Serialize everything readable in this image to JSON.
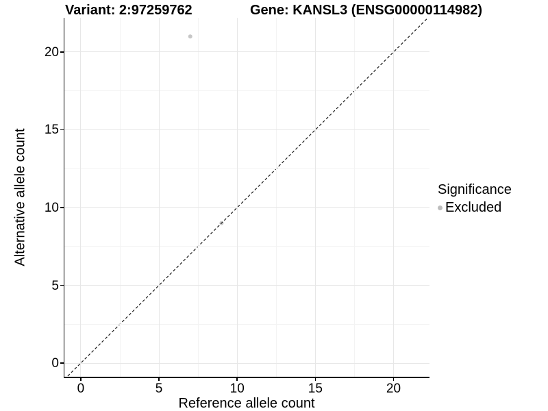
{
  "figure": {
    "variant_title": "Variant: 2:97259762",
    "gene_title": "Gene: KANSL3 (ENSG00000114982)",
    "legend": {
      "title": "Significance",
      "items": [
        {
          "label": "Excluded",
          "color": "#bdbdbd"
        }
      ]
    }
  },
  "chart_data": {
    "type": "scatter",
    "title_left": "Variant: 2:97259762",
    "title_right": "Gene: KANSL3 (ENSG00000114982)",
    "xlabel": "Reference allele count",
    "ylabel": "Alternative allele count",
    "xlim": [
      -1.05,
      22.3
    ],
    "ylim": [
      -0.88,
      22.2
    ],
    "x_ticks": [
      0,
      5,
      10,
      15,
      20
    ],
    "y_ticks": [
      0,
      5,
      10,
      15,
      20
    ],
    "x_minor_gridlines": [
      2.5,
      7.5,
      12.5,
      17.5
    ],
    "y_minor_gridlines": [
      2.5,
      7.5,
      12.5,
      17.5
    ],
    "grid": true,
    "legend_position": "right",
    "series": [
      {
        "name": "Excluded",
        "color": "#c7c7c7",
        "points": [
          {
            "x": 7,
            "y": 21
          },
          {
            "x": 9,
            "y": 9
          }
        ]
      }
    ],
    "reference_line": {
      "type": "identity",
      "slope": 1,
      "intercept": 0,
      "style": "dashed",
      "color": "#1a1a1a"
    },
    "colors": {
      "major_grid": "#e7e7e7",
      "minor_grid": "#f3f3f3",
      "axis": "#000000",
      "point": "#c7c7c7"
    }
  }
}
